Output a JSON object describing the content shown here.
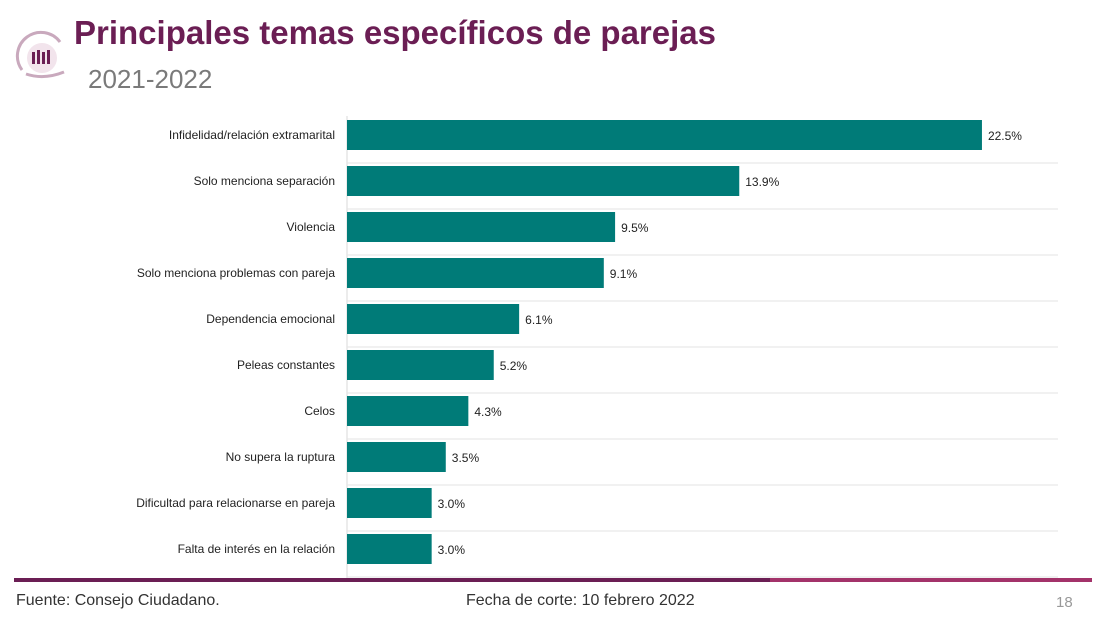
{
  "header": {
    "title": "Principales temas específicos de parejas",
    "subtitle": "2021-2022"
  },
  "footer": {
    "source": "Fuente: Consejo Ciudadano.",
    "cutoff": "Fecha de corte: 10 febrero 2022",
    "page": "18"
  },
  "colors": {
    "bar": "#007b78",
    "title": "#6b1e54",
    "accent": "#a3336a"
  },
  "chart_data": {
    "type": "bar",
    "orientation": "horizontal",
    "categories": [
      "Infidelidad/relación extramarital",
      "Solo menciona separación",
      "Violencia",
      "Solo menciona problemas  con pareja",
      "Dependencia emocional",
      "Peleas constantes",
      "Celos",
      "No supera la ruptura",
      "Dificultad para relacionarse  en pareja",
      "Falta de interés en la relación"
    ],
    "values": [
      22.5,
      13.9,
      9.5,
      9.1,
      6.1,
      5.2,
      4.3,
      3.5,
      3.0,
      3.0
    ],
    "labels": [
      "22.5%",
      "13.9%",
      "9.5%",
      "9.1%",
      "6.1%",
      "5.2%",
      "4.3%",
      "3.5%",
      "3.0%",
      "3.0%"
    ],
    "grid": true
  }
}
